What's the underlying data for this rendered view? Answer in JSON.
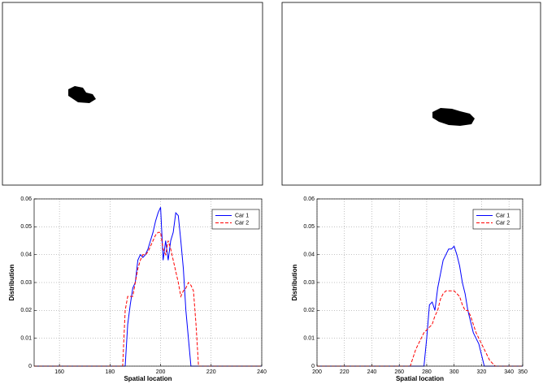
{
  "chart_data": [
    {
      "type": "line",
      "xlabel": "Spatial location",
      "ylabel": "Distribution",
      "xlim": [
        150,
        240
      ],
      "xticks": [
        160,
        180,
        200,
        220,
        240
      ],
      "ylim": [
        0,
        0.06
      ],
      "yticks": [
        0,
        0.01,
        0.02,
        0.03,
        0.04,
        0.05,
        0.06
      ],
      "grid": true,
      "legend": "upper right",
      "series": [
        {
          "name": "Car 1",
          "color": "#0000ff",
          "dash": "solid",
          "x": [
            150,
            186,
            187,
            188,
            189,
            190,
            191,
            192,
            193,
            194,
            195,
            196,
            197,
            198,
            199,
            200,
            201,
            202,
            203,
            204,
            205,
            206,
            207,
            208,
            209,
            210,
            211,
            212,
            240
          ],
          "values": [
            0,
            0,
            0.015,
            0.022,
            0.028,
            0.03,
            0.038,
            0.04,
            0.039,
            0.04,
            0.042,
            0.045,
            0.048,
            0.052,
            0.055,
            0.057,
            0.038,
            0.045,
            0.038,
            0.045,
            0.048,
            0.055,
            0.054,
            0.045,
            0.035,
            0.02,
            0.01,
            0,
            0
          ]
        },
        {
          "name": "Car 2",
          "color": "#ff0000",
          "dash": "dashed",
          "x": [
            150,
            185,
            186,
            187,
            188,
            189,
            190,
            191,
            192,
            193,
            194,
            195,
            196,
            197,
            198,
            199,
            200,
            201,
            202,
            203,
            204,
            205,
            206,
            207,
            208,
            209,
            210,
            211,
            212,
            213,
            214,
            215,
            240
          ],
          "values": [
            0,
            0,
            0.02,
            0.025,
            0.025,
            0.025,
            0.03,
            0.035,
            0.038,
            0.04,
            0.04,
            0.041,
            0.043,
            0.045,
            0.047,
            0.048,
            0.048,
            0.042,
            0.04,
            0.045,
            0.042,
            0.038,
            0.034,
            0.03,
            0.025,
            0.027,
            0.028,
            0.03,
            0.029,
            0.027,
            0.015,
            0,
            0
          ]
        }
      ]
    },
    {
      "type": "line",
      "xlabel": "Spatial location",
      "ylabel": "Distribution",
      "xlim": [
        200,
        350
      ],
      "xticks": [
        200,
        220,
        240,
        260,
        280,
        300,
        320,
        340,
        350
      ],
      "ylim": [
        0,
        0.06
      ],
      "yticks": [
        0,
        0.01,
        0.02,
        0.03,
        0.04,
        0.05,
        0.06
      ],
      "grid": true,
      "legend": "upper right",
      "series": [
        {
          "name": "Car 1",
          "color": "#0000ff",
          "dash": "solid",
          "x": [
            200,
            278,
            280,
            282,
            284,
            286,
            288,
            290,
            292,
            294,
            296,
            298,
            300,
            302,
            304,
            306,
            308,
            310,
            312,
            314,
            316,
            318,
            320,
            322,
            350
          ],
          "values": [
            0,
            0,
            0.01,
            0.022,
            0.023,
            0.02,
            0.028,
            0.033,
            0.038,
            0.04,
            0.042,
            0.042,
            0.043,
            0.04,
            0.036,
            0.03,
            0.026,
            0.02,
            0.016,
            0.012,
            0.01,
            0.008,
            0.004,
            0,
            0
          ]
        },
        {
          "name": "Car 2",
          "color": "#ff0000",
          "dash": "dashed",
          "x": [
            200,
            268,
            270,
            272,
            274,
            276,
            278,
            280,
            282,
            284,
            286,
            288,
            290,
            292,
            294,
            296,
            298,
            300,
            302,
            304,
            306,
            308,
            310,
            312,
            314,
            316,
            318,
            320,
            322,
            324,
            326,
            328,
            330,
            350
          ],
          "values": [
            0,
            0,
            0.003,
            0.006,
            0.008,
            0.01,
            0.012,
            0.013,
            0.014,
            0.015,
            0.018,
            0.02,
            0.024,
            0.026,
            0.027,
            0.027,
            0.027,
            0.027,
            0.026,
            0.025,
            0.022,
            0.02,
            0.02,
            0.018,
            0.015,
            0.012,
            0.01,
            0.008,
            0.006,
            0.004,
            0.002,
            0.001,
            0,
            0
          ]
        }
      ]
    }
  ]
}
